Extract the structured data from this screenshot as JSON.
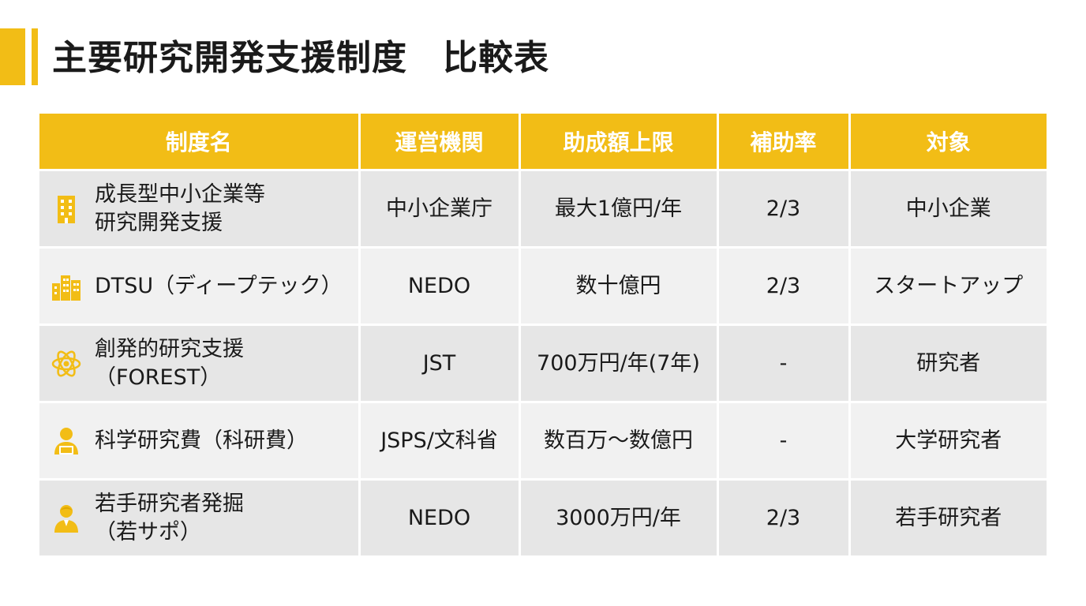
{
  "title": "主要研究開発支援制度　比較表",
  "colors": {
    "accent": "#f2bd16",
    "row_dark": "#e6e6e6",
    "row_light": "#f1f1f1"
  },
  "table": {
    "headers": [
      "制度名",
      "運営機関",
      "助成額上限",
      "補助率",
      "対象"
    ],
    "rows": [
      {
        "icon": "office-building-icon",
        "name": "成長型中小企業等\n研究開発支援",
        "org": "中小企業庁",
        "amount": "最大1億円/年",
        "rate": "2/3",
        "target": "中小企業"
      },
      {
        "icon": "city-buildings-icon",
        "name": "DTSU（ディープテック）",
        "org": "NEDO",
        "amount": "数十億円",
        "rate": "2/3",
        "target": "スタートアップ"
      },
      {
        "icon": "atom-icon",
        "name": "創発的研究支援\n（FOREST）",
        "org": "JST",
        "amount": "700万円/年(7年)",
        "rate": "-",
        "target": "研究者"
      },
      {
        "icon": "researcher-laptop-icon",
        "name": "科学研究費（科研費）",
        "org": "JSPS/文科省",
        "amount": "数百万～数億円",
        "rate": "-",
        "target": "大学研究者"
      },
      {
        "icon": "young-researcher-icon",
        "name": "若手研究者発掘\n（若サポ）",
        "org": "NEDO",
        "amount": "3000万円/年",
        "rate": "2/3",
        "target": "若手研究者"
      }
    ]
  }
}
